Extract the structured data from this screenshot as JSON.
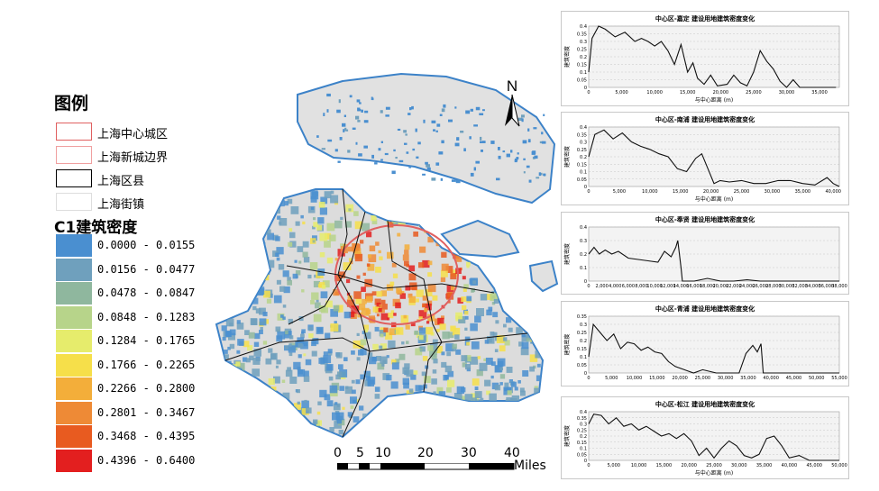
{
  "legend": {
    "title": "图例",
    "items": [
      {
        "label": "上海中心城区",
        "border": "#e06060"
      },
      {
        "label": "上海新城边界",
        "border": "#f0a0a0"
      },
      {
        "label": "上海区县",
        "border": "#000000"
      },
      {
        "label": "上海街镇",
        "border": "#dddddd"
      }
    ],
    "density_title": "C1建筑密度",
    "classes": [
      {
        "label": "0.0000 - 0.0155",
        "color": "#4a8fd0"
      },
      {
        "label": "0.0156 - 0.0477",
        "color": "#6fa0bd"
      },
      {
        "label": "0.0478 - 0.0847",
        "color": "#8fb79e"
      },
      {
        "label": "0.0848 - 0.1283",
        "color": "#b7d48a"
      },
      {
        "label": "0.1284 - 0.1765",
        "color": "#e6ec6c"
      },
      {
        "label": "0.1766 - 0.2265",
        "color": "#f6df4a"
      },
      {
        "label": "0.2266 - 0.2800",
        "color": "#f3ae3a"
      },
      {
        "label": "0.2801 - 0.3467",
        "color": "#ee8a36"
      },
      {
        "label": "0.3468 - 0.4395",
        "color": "#e85b20"
      },
      {
        "label": "0.4396 - 0.6400",
        "color": "#e31f1f"
      }
    ]
  },
  "north_arrow": {
    "label": "N"
  },
  "scale": {
    "ticks": [
      "0",
      "5",
      "10",
      "20",
      "30",
      "40"
    ],
    "unit": "Miles"
  },
  "chart_data": [
    {
      "type": "line",
      "title": "中心区-嘉定 建设用地建筑密度变化",
      "ylabel": "建筑密度",
      "xlabel": "与中心距离 (m)",
      "xlim": [
        0,
        38000
      ],
      "ylim": [
        0,
        0.4
      ],
      "xticks": [
        "0",
        "5,000",
        "10,000",
        "15,000",
        "20,000",
        "25,000",
        "30,000",
        "35,000"
      ],
      "yticks": [
        "0",
        "0.05",
        "0.1",
        "0.15",
        "0.2",
        "0.25",
        "0.3",
        "0.35",
        "0.4"
      ],
      "x": [
        0,
        500,
        1500,
        2500,
        4000,
        5500,
        7000,
        8000,
        9000,
        10000,
        11000,
        12000,
        13000,
        14000,
        15000,
        15800,
        16500,
        17500,
        18500,
        19500,
        21000,
        22000,
        23000,
        24000,
        25000,
        26000,
        27000,
        28000,
        29000,
        30000,
        31000,
        32000,
        34000,
        36000,
        37500
      ],
      "y": [
        0.1,
        0.32,
        0.4,
        0.38,
        0.33,
        0.36,
        0.3,
        0.32,
        0.3,
        0.27,
        0.3,
        0.24,
        0.15,
        0.28,
        0.1,
        0.16,
        0.06,
        0.02,
        0.08,
        0.01,
        0.02,
        0.08,
        0.03,
        0.01,
        0.1,
        0.24,
        0.17,
        0.12,
        0.04,
        0.0,
        0.05,
        0.0,
        0.0,
        0.0,
        0.0
      ]
    },
    {
      "type": "line",
      "title": "中心区-南浦 建设用地建筑密度变化",
      "ylabel": "建筑密度",
      "xlabel": "与中心距离 (m)",
      "xlim": [
        0,
        41000
      ],
      "ylim": [
        0,
        0.4
      ],
      "xticks": [
        "0",
        "5,000",
        "10,000",
        "15,000",
        "20,000",
        "25,000",
        "30,000",
        "35,000",
        "40,000"
      ],
      "yticks": [
        "0",
        "0.05",
        "0.1",
        "0.15",
        "0.2",
        "0.25",
        "0.3",
        "0.35",
        "0.4"
      ],
      "x": [
        0,
        1000,
        2500,
        4000,
        5500,
        7000,
        8500,
        10000,
        11500,
        13000,
        14500,
        16000,
        17500,
        18500,
        19500,
        20500,
        21500,
        23000,
        25000,
        27000,
        29000,
        31000,
        33000,
        35000,
        37000,
        39000,
        40000,
        41000
      ],
      "y": [
        0.2,
        0.35,
        0.38,
        0.32,
        0.36,
        0.3,
        0.27,
        0.25,
        0.22,
        0.2,
        0.12,
        0.1,
        0.19,
        0.22,
        0.12,
        0.02,
        0.04,
        0.03,
        0.04,
        0.02,
        0.02,
        0.04,
        0.04,
        0.02,
        0.01,
        0.06,
        0.02,
        0.0
      ]
    },
    {
      "type": "line",
      "title": "中心区-奉贤 建设用地建筑密度变化",
      "ylabel": "建筑密度",
      "xlabel": "",
      "xlim": [
        0,
        38000
      ],
      "ylim": [
        0,
        0.4
      ],
      "xticks": [
        "0",
        "2,000",
        "4,000",
        "6,000",
        "8,000",
        "10,000",
        "12,000",
        "14,000",
        "16,000",
        "18,000",
        "20,000",
        "22,000",
        "24,000",
        "26,000",
        "28,000",
        "30,000",
        "32,000",
        "34,000",
        "36,000",
        "38,000"
      ],
      "yticks": [
        "0",
        "0.1",
        "0.2",
        "0.3",
        "0.4"
      ],
      "x": [
        0,
        800,
        1600,
        2500,
        3500,
        4500,
        6000,
        7500,
        9000,
        10500,
        11500,
        12500,
        13200,
        13500,
        14000,
        14200,
        14500,
        16000,
        18000,
        20000,
        22000,
        24000,
        26000,
        28000,
        30000,
        38000
      ],
      "y": [
        0.2,
        0.25,
        0.2,
        0.23,
        0.2,
        0.22,
        0.17,
        0.16,
        0.15,
        0.14,
        0.22,
        0.18,
        0.25,
        0.3,
        0.1,
        0.0,
        0.0,
        0.0,
        0.02,
        0.0,
        0.0,
        0.01,
        0.0,
        0.0,
        0.0,
        0.0
      ]
    },
    {
      "type": "line",
      "title": "中心区-青浦 建设用地建筑密度变化",
      "ylabel": "建筑密度",
      "xlabel": "",
      "xlim": [
        0,
        55000
      ],
      "ylim": [
        0,
        0.35
      ],
      "xticks": [
        "0",
        "5,000",
        "10,000",
        "15,000",
        "20,000",
        "25,000",
        "30,000",
        "35,000",
        "40,000",
        "45,000",
        "50,000",
        "55,000"
      ],
      "yticks": [
        "0",
        "0.05",
        "0.1",
        "0.15",
        "0.2",
        "0.25",
        "0.3",
        "0.35"
      ],
      "x": [
        0,
        1000,
        2500,
        4000,
        5500,
        7000,
        8500,
        10000,
        11500,
        13000,
        14500,
        16000,
        17500,
        19000,
        21000,
        23000,
        25000,
        28000,
        31000,
        33000,
        34500,
        36000,
        37000,
        37800,
        38300,
        40000,
        45000,
        55000
      ],
      "y": [
        0.1,
        0.3,
        0.25,
        0.2,
        0.24,
        0.15,
        0.19,
        0.18,
        0.14,
        0.16,
        0.13,
        0.12,
        0.07,
        0.04,
        0.02,
        0.0,
        0.02,
        0.0,
        0.0,
        0.0,
        0.12,
        0.17,
        0.13,
        0.18,
        0.0,
        0.0,
        0.0,
        0.0
      ]
    },
    {
      "type": "line",
      "title": "中心区-松江 建设用地建筑密度变化",
      "ylabel": "建筑密度",
      "xlabel": "与中心距离 (m)",
      "xlim": [
        0,
        50000
      ],
      "ylim": [
        0,
        0.4
      ],
      "xticks": [
        "0",
        "5,000",
        "10,000",
        "15,000",
        "20,000",
        "25,000",
        "30,000",
        "35,000",
        "40,000",
        "45,000",
        "50,000"
      ],
      "yticks": [
        "0",
        "0.05",
        "0.1",
        "0.15",
        "0.2",
        "0.25",
        "0.3",
        "0.35",
        "0.4"
      ],
      "x": [
        0,
        1000,
        2500,
        4000,
        5500,
        7000,
        8500,
        10000,
        11500,
        13000,
        14500,
        16000,
        17500,
        19000,
        20500,
        22000,
        23500,
        25000,
        26500,
        28000,
        29500,
        31000,
        32500,
        34000,
        35500,
        37000,
        38500,
        40000,
        42000,
        44000,
        46000,
        50000
      ],
      "y": [
        0.3,
        0.38,
        0.37,
        0.3,
        0.35,
        0.28,
        0.3,
        0.25,
        0.28,
        0.24,
        0.2,
        0.22,
        0.18,
        0.22,
        0.16,
        0.04,
        0.1,
        0.02,
        0.1,
        0.16,
        0.12,
        0.04,
        0.02,
        0.05,
        0.18,
        0.2,
        0.12,
        0.02,
        0.04,
        0.0,
        0.0,
        0.0
      ]
    }
  ]
}
